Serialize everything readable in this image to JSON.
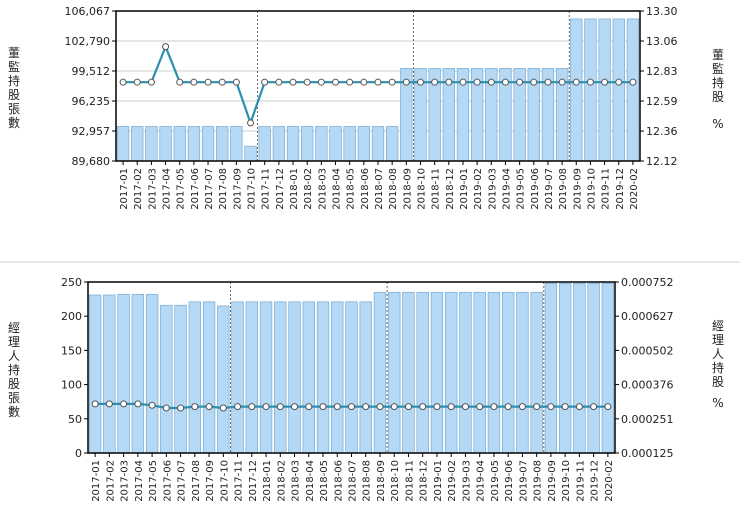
{
  "colors": {
    "bar_fill": "#b5d9f5",
    "bar_stroke": "#7aa9cf",
    "line": "#2a8fb0",
    "marker_fill": "#ffffff",
    "marker_stroke": "#555555",
    "frame": "#000000",
    "grid": "#bbbbbb",
    "vline": "#444444"
  },
  "chart_data": [
    {
      "type": "bar",
      "categories": [
        "2017-01",
        "2017-02",
        "2017-03",
        "2017-04",
        "2017-05",
        "2017-06",
        "2017-07",
        "2017-08",
        "2017-09",
        "2017-10",
        "2017-11",
        "2017-12",
        "2018-01",
        "2018-02",
        "2018-03",
        "2018-04",
        "2018-05",
        "2018-06",
        "2018-07",
        "2018-08",
        "2018-09",
        "2018-10",
        "2018-11",
        "2018-12",
        "2019-01",
        "2019-02",
        "2019-03",
        "2019-04",
        "2019-05",
        "2019-06",
        "2019-07",
        "2019-08",
        "2019-09",
        "2019-10",
        "2019-11",
        "2019-12",
        "2020-02"
      ],
      "ylabel": "董監持股張數",
      "y2label": [
        "董監持股",
        "%"
      ],
      "ylim": [
        89680,
        106067
      ],
      "y2lim": [
        12.12,
        13.3
      ],
      "yticks": [
        "89,680",
        "92,957",
        "96,235",
        "99,512",
        "102,790",
        "106,067"
      ],
      "y2ticks": [
        "12.12",
        "12.36",
        "12.59",
        "12.83",
        "13.06",
        "13.30"
      ],
      "grid": true,
      "series": [
        {
          "type": "bar",
          "axis": "left",
          "values": [
            93450,
            93450,
            93450,
            93450,
            93450,
            93450,
            93450,
            93450,
            93450,
            91300,
            93450,
            93450,
            93450,
            93450,
            93450,
            93450,
            93450,
            93450,
            93450,
            93450,
            99800,
            99800,
            99800,
            99800,
            99800,
            99800,
            99800,
            99800,
            99800,
            99800,
            99800,
            99800,
            105200,
            105200,
            105200,
            105200,
            105200
          ]
        },
        {
          "type": "line",
          "axis": "right",
          "values": [
            12.74,
            12.74,
            12.74,
            13.02,
            12.74,
            12.74,
            12.74,
            12.74,
            12.74,
            12.42,
            12.74,
            12.74,
            12.74,
            12.74,
            12.74,
            12.74,
            12.74,
            12.74,
            12.74,
            12.74,
            12.74,
            12.74,
            12.74,
            12.74,
            12.74,
            12.74,
            12.74,
            12.74,
            12.74,
            12.74,
            12.74,
            12.74,
            12.74,
            12.74,
            12.74,
            12.74,
            12.74
          ]
        }
      ],
      "year_markers": [
        "2017-10",
        "2018-09",
        "2019-08"
      ]
    },
    {
      "type": "bar",
      "categories": [
        "2017-01",
        "2017-02",
        "2017-03",
        "2017-04",
        "2017-05",
        "2017-06",
        "2017-07",
        "2017-08",
        "2017-09",
        "2017-10",
        "2017-11",
        "2017-12",
        "2018-01",
        "2018-02",
        "2018-03",
        "2018-04",
        "2018-05",
        "2018-06",
        "2018-07",
        "2018-08",
        "2018-09",
        "2018-10",
        "2018-11",
        "2018-12",
        "2019-01",
        "2019-02",
        "2019-03",
        "2019-04",
        "2019-05",
        "2019-06",
        "2019-07",
        "2019-08",
        "2019-09",
        "2019-10",
        "2019-11",
        "2019-12",
        "2020-02"
      ],
      "ylabel": "經理人持股張數",
      "y2label": [
        "經理人持股",
        "%"
      ],
      "ylim": [
        0,
        250
      ],
      "y2lim": [
        0.000125,
        0.000752
      ],
      "yticks": [
        "0",
        "50",
        "100",
        "150",
        "200",
        "250"
      ],
      "y2ticks": [
        "0.000125",
        "0.000251",
        "0.000376",
        "0.000502",
        "0.000627",
        "0.000752"
      ],
      "grid": false,
      "series": [
        {
          "type": "bar",
          "axis": "left",
          "values": [
            231,
            231,
            232,
            232,
            232,
            216,
            216,
            221,
            221,
            215,
            221,
            221,
            221,
            221,
            221,
            221,
            221,
            221,
            221,
            221,
            235,
            235,
            235,
            235,
            235,
            235,
            235,
            235,
            235,
            235,
            235,
            235,
            248,
            248,
            248,
            248,
            248
          ]
        },
        {
          "type": "line",
          "axis": "right",
          "values": [
            0.000305,
            0.000305,
            0.000305,
            0.000305,
            0.0003,
            0.00029,
            0.00029,
            0.000295,
            0.000295,
            0.00029,
            0.000295,
            0.000295,
            0.000295,
            0.000295,
            0.000295,
            0.000295,
            0.000295,
            0.000295,
            0.000295,
            0.000295,
            0.000295,
            0.000295,
            0.000295,
            0.000295,
            0.000295,
            0.000295,
            0.000295,
            0.000295,
            0.000295,
            0.000295,
            0.000295,
            0.000295,
            0.000295,
            0.000295,
            0.000295,
            0.000295,
            0.000295
          ]
        }
      ],
      "year_markers": [
        "2017-10",
        "2018-09",
        "2019-08"
      ]
    }
  ]
}
